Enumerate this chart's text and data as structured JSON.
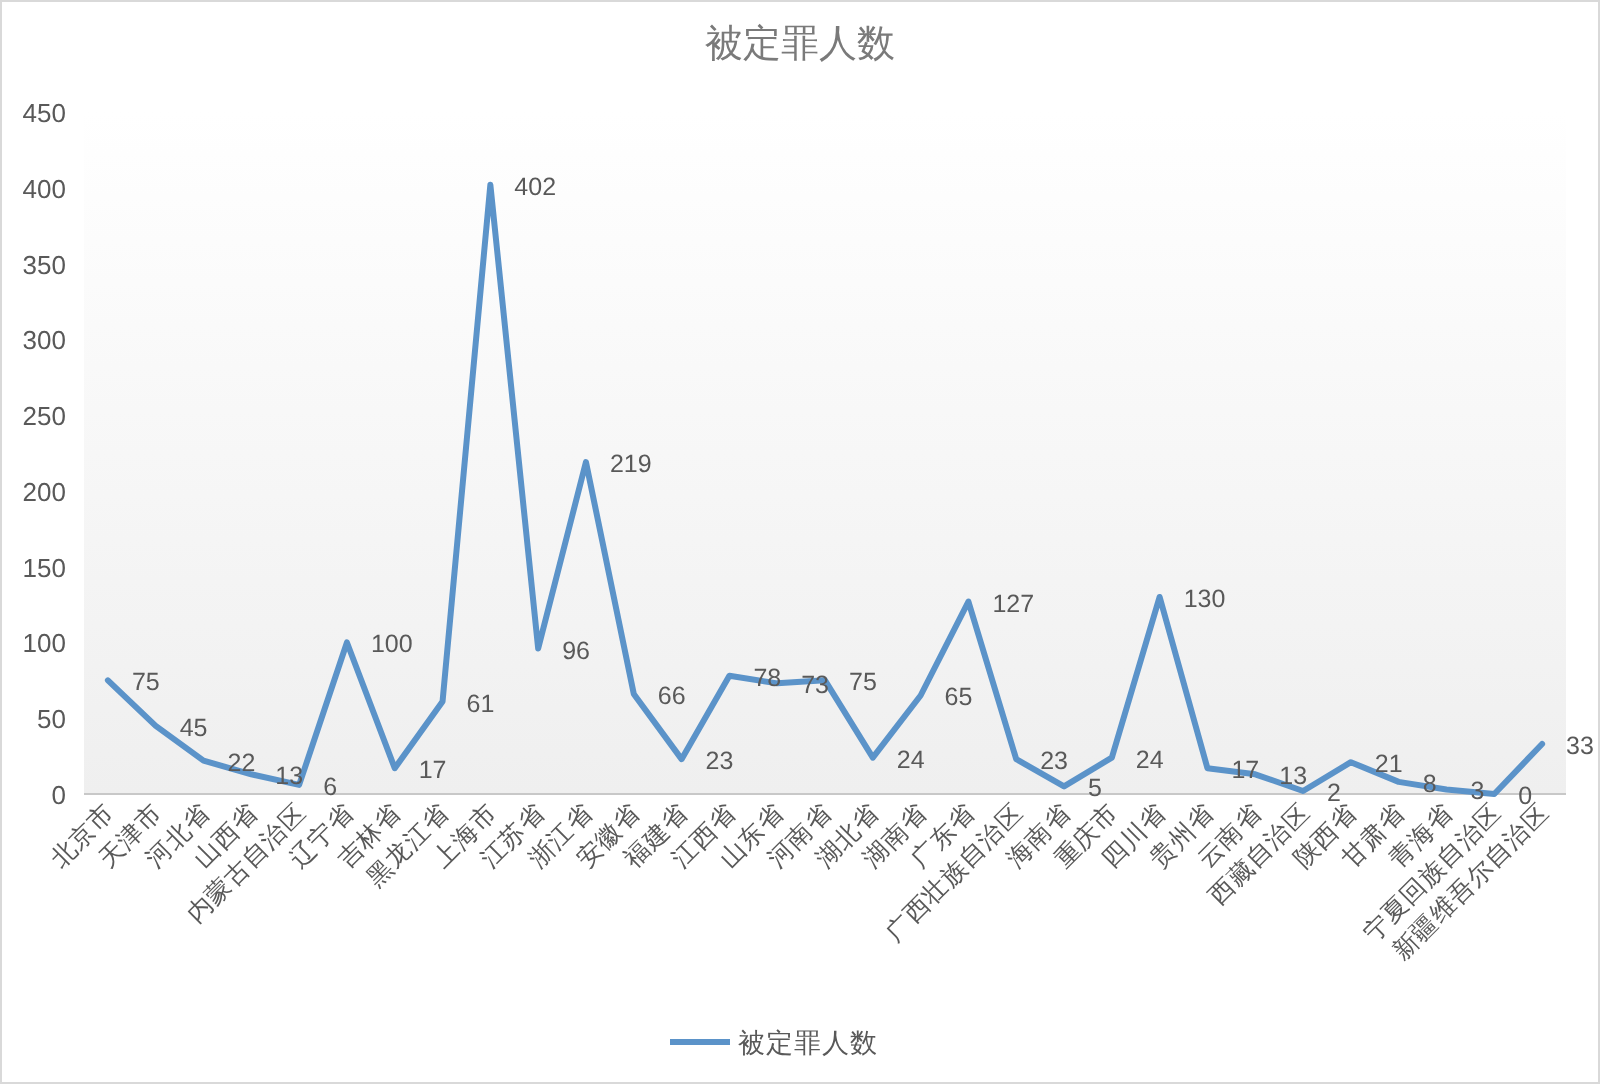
{
  "chart_data": {
    "type": "line",
    "title": "被定罪人数",
    "categories": [
      "北京市",
      "天津市",
      "河北省",
      "山西省",
      "内蒙古自治区",
      "辽宁省",
      "吉林省",
      "黑龙江省",
      "上海市",
      "江苏省",
      "浙江省",
      "安徽省",
      "福建省",
      "江西省",
      "山东省",
      "河南省",
      "湖北省",
      "湖南省",
      "广东省",
      "广西壮族自治区",
      "海南省",
      "重庆市",
      "四川省",
      "贵州省",
      "云南省",
      "西藏自治区",
      "陕西省",
      "甘肃省",
      "青海省",
      "宁夏回族自治区",
      "新疆维吾尔自治区"
    ],
    "series": [
      {
        "name": "被定罪人数",
        "color": "#5b93c9",
        "values": [
          75,
          45,
          22,
          13,
          6,
          100,
          17,
          61,
          402,
          96,
          219,
          66,
          23,
          78,
          73,
          75,
          24,
          65,
          127,
          23,
          5,
          24,
          130,
          17,
          13,
          2,
          21,
          8,
          3,
          0,
          33
        ]
      }
    ],
    "ylim": [
      0,
      450
    ],
    "yticks": [
      0,
      50,
      100,
      150,
      200,
      250,
      300,
      350,
      400,
      450
    ],
    "data_labels": true,
    "legend": "bottom"
  }
}
